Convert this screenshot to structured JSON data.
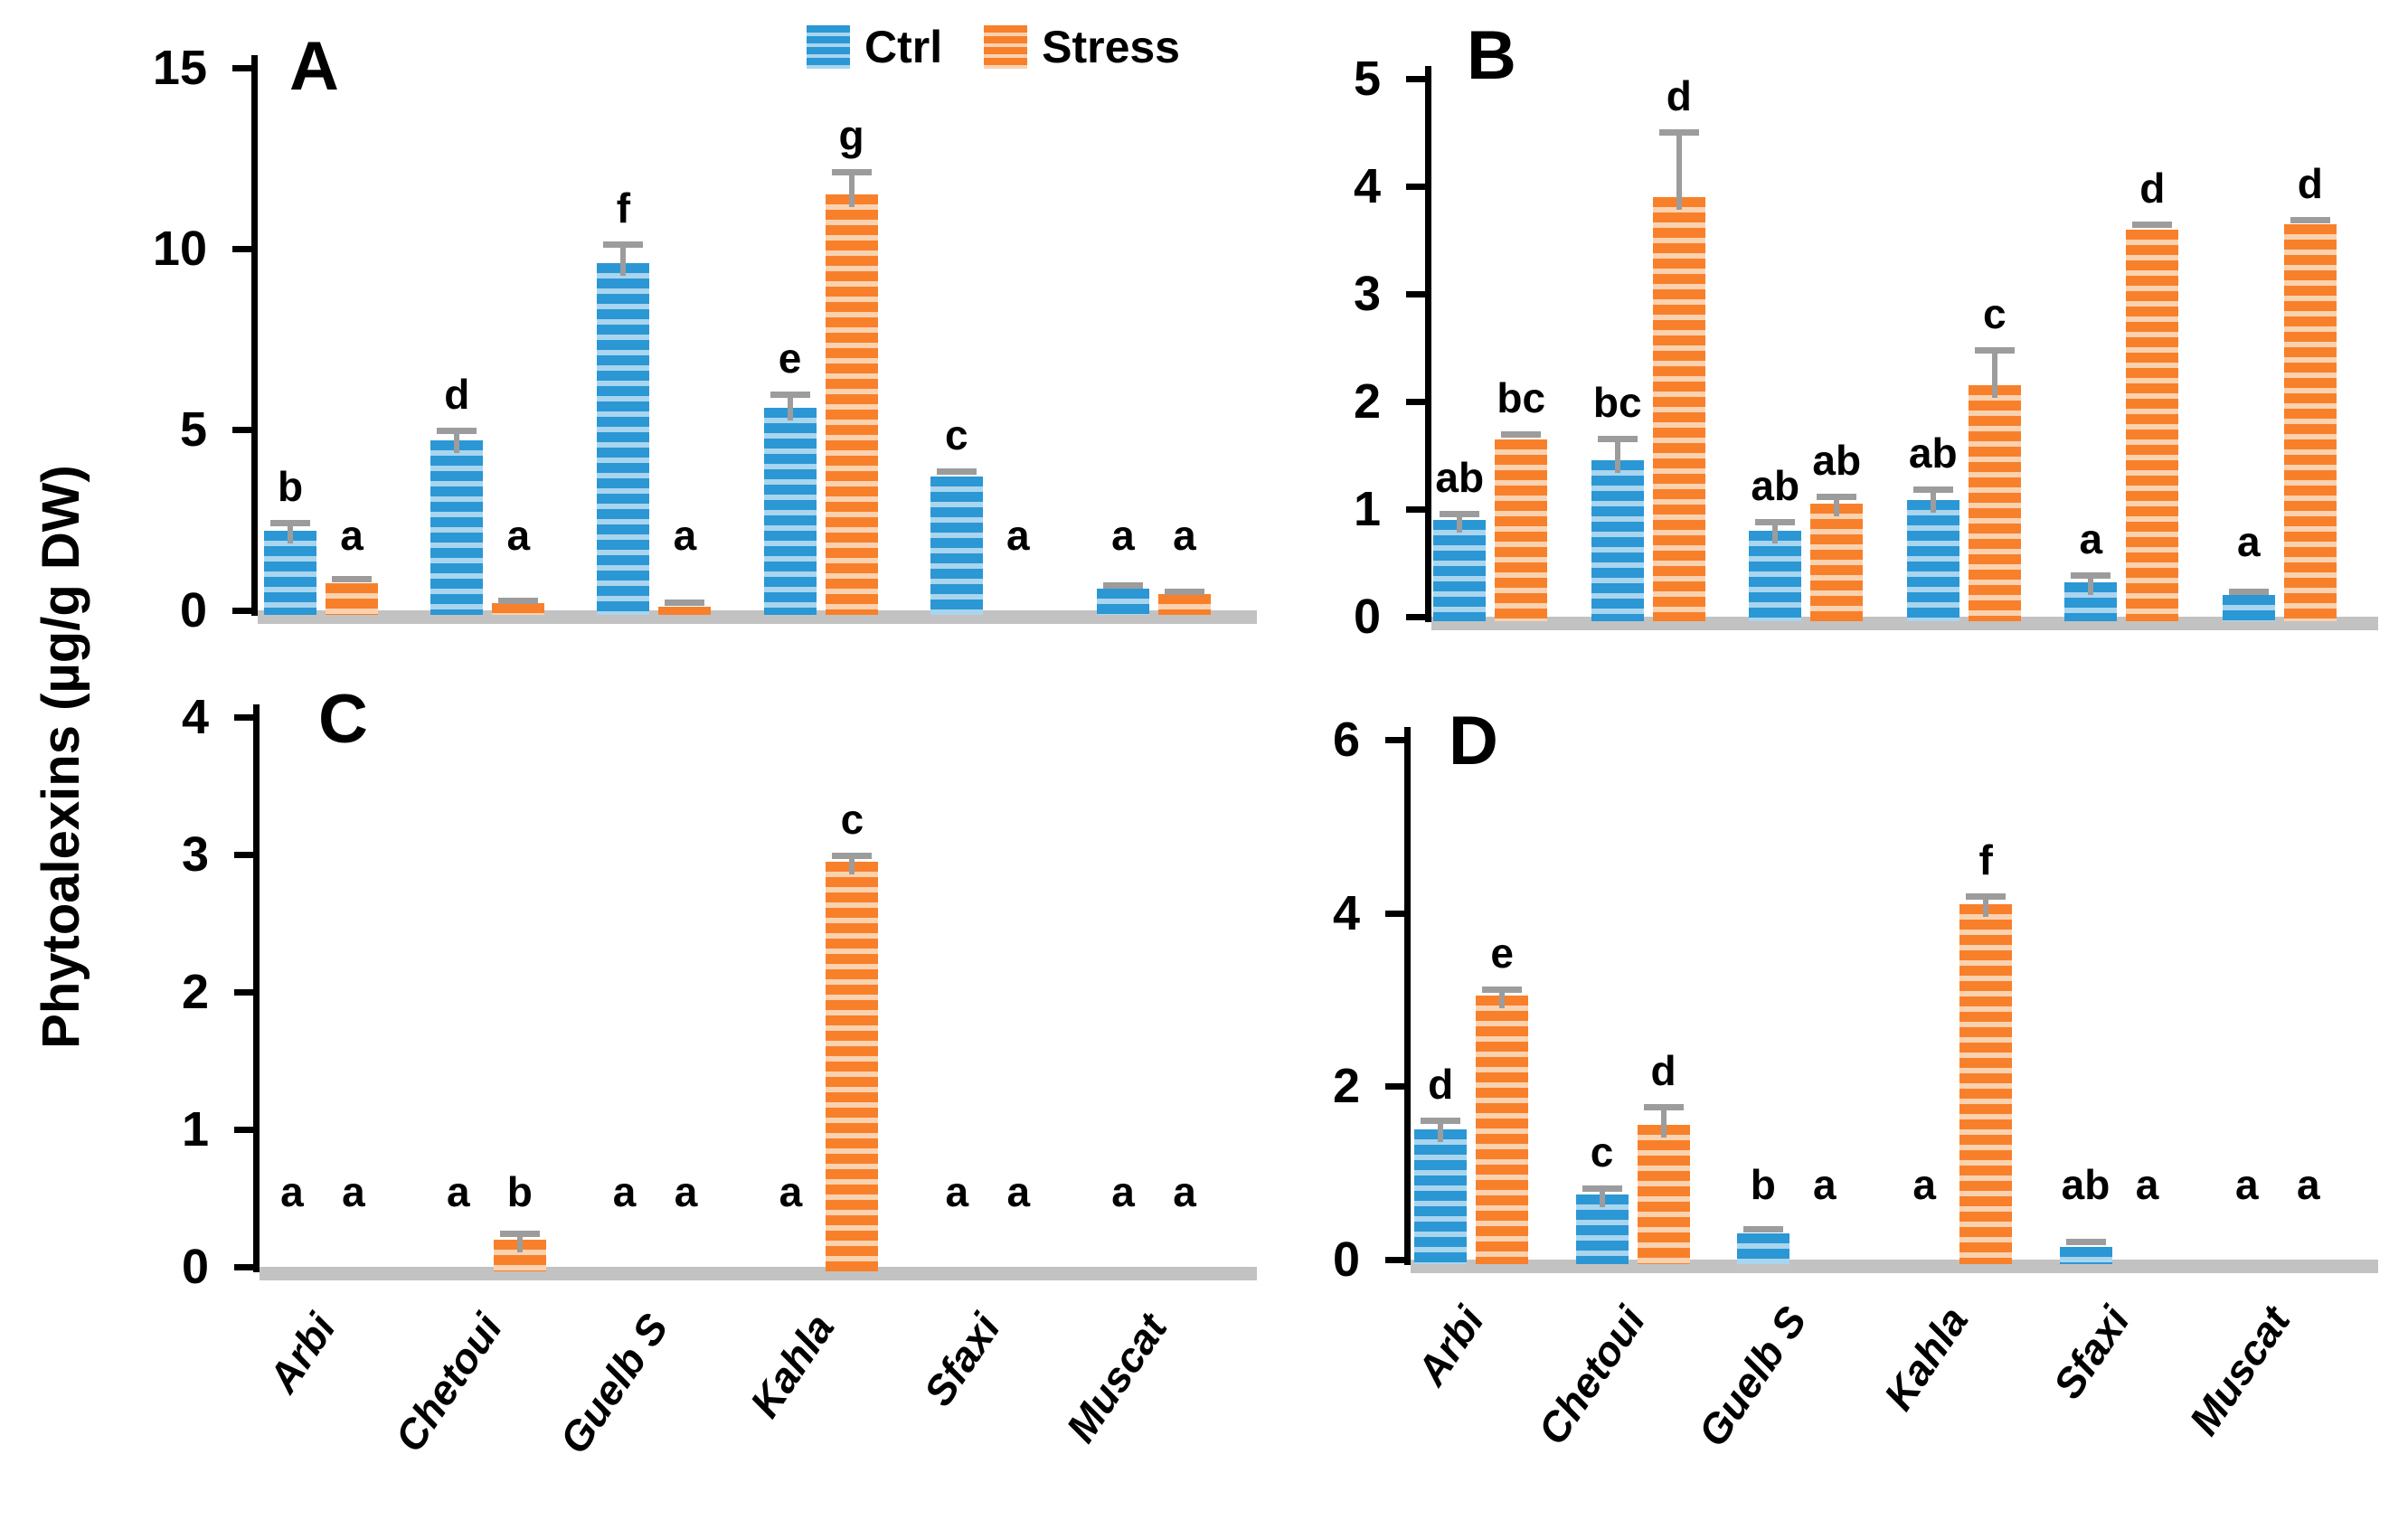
{
  "figure": {
    "ylabel": "Phytoalexins (µg/g DW)",
    "legend": [
      {
        "label": "Ctrl",
        "color": "#2b97d4",
        "stripe": "#a9d5ef"
      },
      {
        "label": "Stress",
        "color": "#f8802b",
        "stripe": "#fad2b0"
      }
    ],
    "error_bar_color": "#9c9c9c",
    "baseline_color": "#c2c2c2"
  },
  "categories": [
    "Arbi",
    "Chetoui",
    "Guelb S",
    "Kahla",
    "Sfaxi",
    "Muscat"
  ],
  "chart_data": [
    {
      "type": "bar",
      "panel": "A",
      "ylim": [
        0,
        15
      ],
      "yticks": [
        0,
        5,
        10,
        15
      ],
      "grid": false,
      "legend_position": "top-center",
      "categories": [
        "Arbi",
        "Chetoui",
        "Guelb S",
        "Kahla",
        "Sfaxi",
        "Muscat"
      ],
      "series": [
        {
          "name": "Ctrl",
          "values": [
            2.2,
            4.7,
            9.6,
            5.6,
            3.7,
            0.6
          ],
          "errors": [
            0.2,
            0.25,
            0.5,
            0.35,
            0.12,
            0.08
          ],
          "letters": [
            "b",
            "d",
            "f",
            "e",
            "c",
            "a"
          ]
        },
        {
          "name": "Stress",
          "values": [
            0.75,
            0.2,
            0.1,
            11.5,
            0,
            0.45
          ],
          "errors": [
            0.1,
            0.06,
            0.1,
            0.6,
            0,
            0.06
          ],
          "letters": [
            "a",
            "a",
            "a",
            "g",
            "a",
            "a"
          ]
        }
      ]
    },
    {
      "type": "bar",
      "panel": "B",
      "ylim": [
        0,
        5
      ],
      "yticks": [
        0,
        1,
        2,
        3,
        4,
        5
      ],
      "grid": false,
      "categories": [
        "Arbi",
        "Chetoui",
        "Guelb S",
        "Kahla",
        "Sfaxi",
        "Muscat"
      ],
      "series": [
        {
          "name": "Ctrl",
          "values": [
            0.9,
            1.45,
            0.8,
            1.08,
            0.32,
            0.2
          ],
          "errors": [
            0.05,
            0.2,
            0.07,
            0.1,
            0.06,
            0.03
          ],
          "letters": [
            "ab",
            "bc",
            "ab",
            "ab",
            "a",
            "a"
          ]
        },
        {
          "name": "Stress",
          "values": [
            1.65,
            3.9,
            1.05,
            2.15,
            3.6,
            3.65
          ],
          "errors": [
            0.04,
            0.6,
            0.06,
            0.32,
            0.04,
            0.03
          ],
          "letters": [
            "bc",
            "d",
            "ab",
            "c",
            "d",
            "d"
          ]
        }
      ]
    },
    {
      "type": "bar",
      "panel": "C",
      "ylim": [
        0,
        4
      ],
      "yticks": [
        0,
        1,
        2,
        3,
        4
      ],
      "grid": false,
      "categories": [
        "Arbi",
        "Chetoui",
        "Guelb S",
        "Kahla",
        "Sfaxi",
        "Muscat"
      ],
      "series": [
        {
          "name": "Ctrl",
          "values": [
            0,
            0,
            0,
            0,
            0,
            0
          ],
          "errors": [
            0,
            0,
            0,
            0,
            0,
            0
          ],
          "letters": [
            "a",
            "a",
            "a",
            "a",
            "a",
            "a"
          ]
        },
        {
          "name": "Stress",
          "values": [
            0,
            0.2,
            0,
            2.95,
            0,
            0
          ],
          "errors": [
            0,
            0.04,
            0,
            0.04,
            0,
            0
          ],
          "letters": [
            "a",
            "b",
            "a",
            "c",
            "a",
            "a"
          ]
        }
      ]
    },
    {
      "type": "bar",
      "panel": "D",
      "ylim": [
        0,
        6
      ],
      "yticks": [
        0,
        2,
        4,
        6
      ],
      "grid": false,
      "categories": [
        "Arbi",
        "Chetoui",
        "Guelb S",
        "Kahla",
        "Sfaxi",
        "Muscat"
      ],
      "series": [
        {
          "name": "Ctrl",
          "values": [
            1.5,
            0.75,
            0.3,
            0,
            0.15,
            0
          ],
          "errors": [
            0.1,
            0.06,
            0.04,
            0,
            0.05,
            0
          ],
          "letters": [
            "d",
            "c",
            "b",
            "a",
            "ab",
            "a"
          ]
        },
        {
          "name": "Stress",
          "values": [
            3.05,
            1.55,
            0,
            4.1,
            0,
            0
          ],
          "errors": [
            0.06,
            0.2,
            0,
            0.08,
            0,
            0
          ],
          "letters": [
            "e",
            "d",
            "a",
            "f",
            "a",
            "a"
          ]
        }
      ]
    }
  ]
}
